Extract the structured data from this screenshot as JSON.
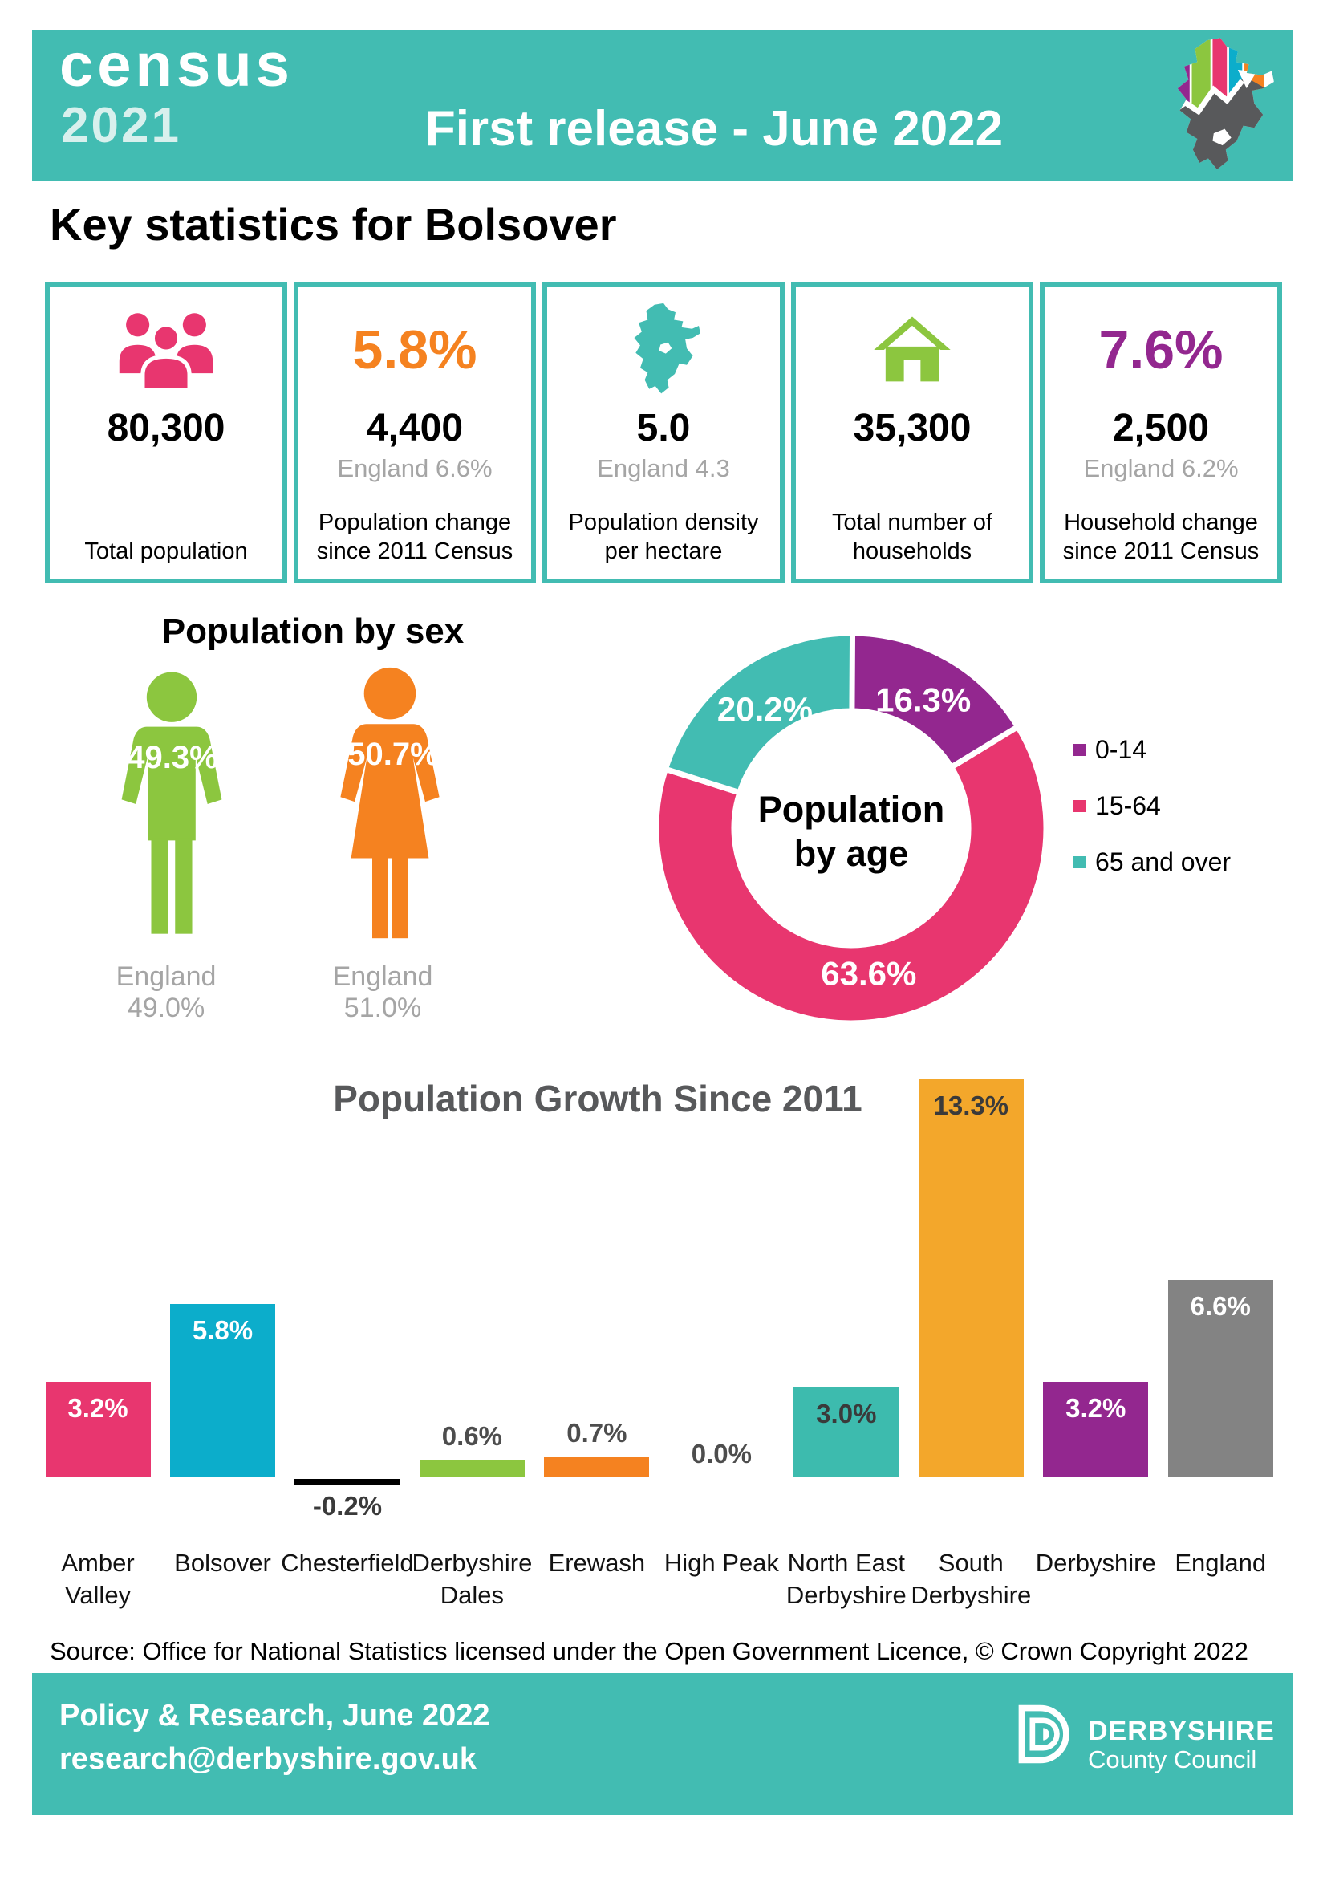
{
  "theme": {
    "teal": "#42BCB2",
    "pink": "#E8366F",
    "cyan": "#0CADCB",
    "green": "#8CC63F",
    "orange": "#F58220",
    "amber": "#F3A72B",
    "purple": "#93278F",
    "gray": "#838383"
  },
  "header": {
    "bg": "#42BCB2",
    "logo_top": "census",
    "logo_year": "2021",
    "logo_year_color": "#D8F0ED",
    "title": "First release - June 2022"
  },
  "page_heading": "Key statistics for Bolsover",
  "stat_cards": [
    {
      "icon": "people-icon",
      "icon_color": "#E8366F",
      "value": "80,300",
      "caption": "Total population"
    },
    {
      "highlight": "5.8%",
      "highlight_color": "#F58220",
      "value": "4,400",
      "comparison": "England 6.6%",
      "caption": "Population change since 2011 Census"
    },
    {
      "icon": "map-icon",
      "icon_color": "#42BCB2",
      "value": "5.0",
      "comparison": "England 4.3",
      "caption": "Population density per hectare"
    },
    {
      "icon": "house-icon",
      "icon_color": "#8CC63F",
      "value": "35,300",
      "caption": "Total number of households"
    },
    {
      "highlight": "7.6%",
      "highlight_color": "#93278F",
      "value": "2,500",
      "comparison": "England 6.2%",
      "caption": "Household change since 2011 Census"
    }
  ],
  "population_by_sex": {
    "title": "Population by sex",
    "male": {
      "percent": "49.3%",
      "england": "England 49.0%",
      "color": "#8CC63F"
    },
    "female": {
      "percent": "50.7%",
      "england": "England 51.0%",
      "color": "#F58220"
    }
  },
  "chart_data": [
    {
      "type": "pie",
      "subtype": "donut",
      "title": "Population by age",
      "center_label": {
        "line1": "Population",
        "line2": "by age"
      },
      "labels": [
        "0-14",
        "15-64",
        "65 and over"
      ],
      "values": [
        16.3,
        63.6,
        20.2
      ],
      "value_labels": [
        "16.3%",
        "63.6%",
        "20.2%"
      ],
      "colors": [
        "#93278F",
        "#E8366F",
        "#42BCB2"
      ],
      "legend_position": "right",
      "start_angle_deg": 0,
      "direction": "clockwise"
    },
    {
      "type": "bar",
      "title": "Population Growth Since 2011",
      "categories": [
        "Amber Valley",
        "Bolsover",
        "Chesterfield",
        "Derbyshire Dales",
        "Erewash",
        "High Peak",
        "North East Derbyshire",
        "South Derbyshire",
        "Derbyshire",
        "England"
      ],
      "values": [
        3.2,
        5.8,
        -0.2,
        0.6,
        0.7,
        0.0,
        3.0,
        13.3,
        3.2,
        6.6
      ],
      "value_labels": [
        "3.2%",
        "5.8%",
        "-0.2%",
        "0.6%",
        "0.7%",
        "0.0%",
        "3.0%",
        "13.3%",
        "3.2%",
        "6.6%"
      ],
      "colors": [
        "#E8366F",
        "#0CADCB",
        "#000000",
        "#8CC63F",
        "#F58220",
        "#999999",
        "#3DBBAE",
        "#F3A72B",
        "#93278F",
        "#838383"
      ],
      "label_styles": [
        {
          "pos": "inside",
          "color": "#FFFFFF"
        },
        {
          "pos": "inside",
          "color": "#FFFFFF"
        },
        {
          "pos": "below",
          "color": "#3A3A3A"
        },
        {
          "pos": "above",
          "color": "#4D4D4D"
        },
        {
          "pos": "above",
          "color": "#4D4D4D"
        },
        {
          "pos": "above",
          "color": "#4D4D4D"
        },
        {
          "pos": "inside",
          "color": "#3A3A3A"
        },
        {
          "pos": "inside",
          "color": "#3A3A3A"
        },
        {
          "pos": "inside",
          "color": "#FFFFFF"
        },
        {
          "pos": "inside",
          "color": "#FFFFFF"
        }
      ],
      "xlabel": "",
      "ylabel": "",
      "ylim": [
        -0.5,
        14
      ],
      "grid": false,
      "baseline_value": 0
    }
  ],
  "source_line": "Source: Office for National Statistics licensed under the Open Government Licence, © Crown Copyright 2022",
  "footer": {
    "bg": "#42BCB2",
    "dept": "Policy & Research, June 2022",
    "email": "research@derbyshire.gov.uk",
    "council_name": "DERBYSHIRE",
    "council_sub": "County Council"
  }
}
